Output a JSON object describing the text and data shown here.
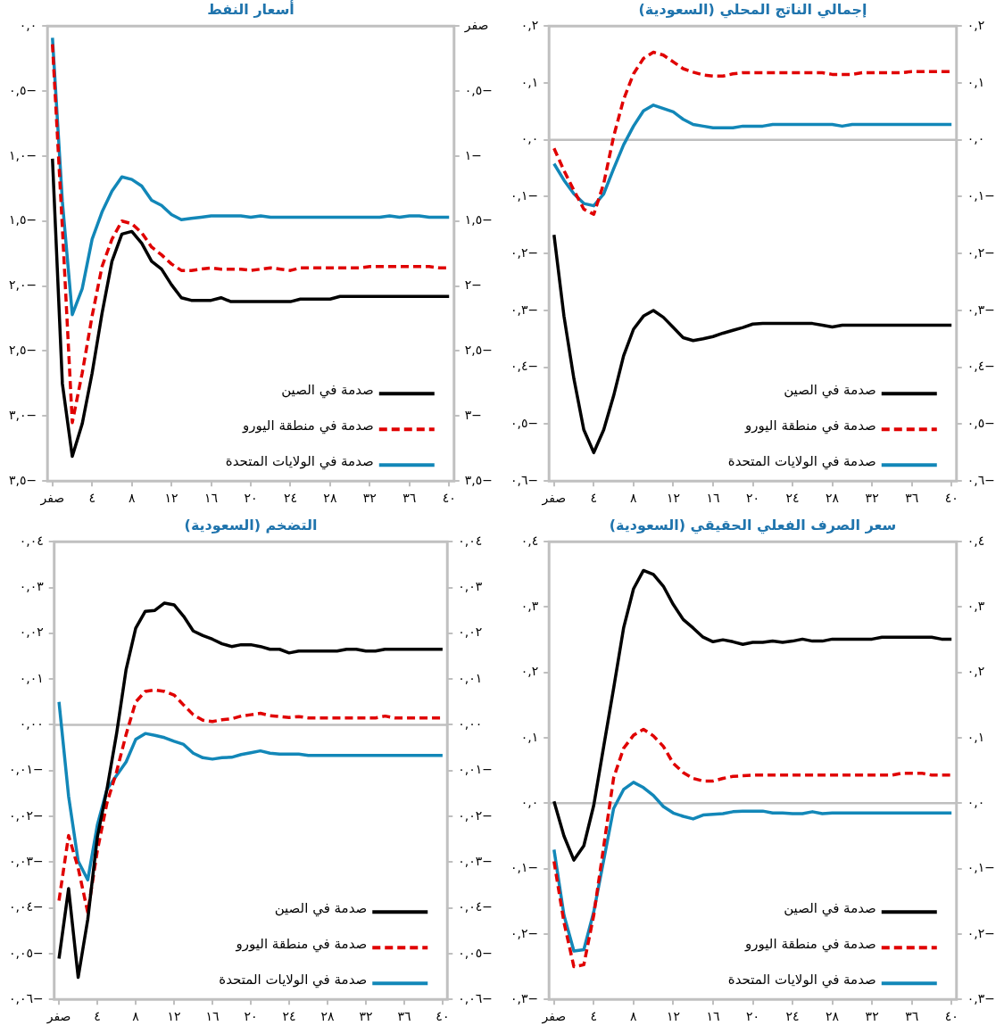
{
  "chart_data": [
    {
      "type": "line",
      "title": "أسعار النفط",
      "x": [
        0,
        1,
        2,
        3,
        4,
        5,
        6,
        7,
        8,
        9,
        10,
        11,
        12,
        13,
        14,
        15,
        16,
        17,
        18,
        19,
        20,
        21,
        22,
        23,
        24,
        25,
        26,
        27,
        28,
        29,
        30,
        31,
        32,
        33,
        34,
        35,
        36,
        37,
        38,
        39,
        40
      ],
      "xlim": [
        -0.5,
        40.5
      ],
      "xticks": [
        {
          "value": 0,
          "label": "صفر"
        },
        {
          "value": 4,
          "label": "٤"
        },
        {
          "value": 8,
          "label": "٨"
        },
        {
          "value": 12,
          "label": "١٢"
        },
        {
          "value": 16,
          "label": "١٦"
        },
        {
          "value": 20,
          "label": "٢٠"
        },
        {
          "value": 24,
          "label": "٢٤"
        },
        {
          "value": 28,
          "label": "٢٨"
        },
        {
          "value": 32,
          "label": "٣٢"
        },
        {
          "value": 36,
          "label": "٣٦"
        },
        {
          "value": 40,
          "label": "٤٠"
        }
      ],
      "ylim": [
        -3.5,
        0
      ],
      "yticks": [
        {
          "value": 0,
          "label": "٠,٠"
        },
        {
          "value": -0.5,
          "label": "٠,٥−"
        },
        {
          "value": -1,
          "label": "١,٠−"
        },
        {
          "value": -1.5,
          "label": "١,٥−"
        },
        {
          "value": -2,
          "label": "٢,٠−"
        },
        {
          "value": -2.5,
          "label": "٢,٥−"
        },
        {
          "value": -3,
          "label": "٣,٠−"
        },
        {
          "value": -3.5,
          "label": "٣,٥−"
        }
      ],
      "y2lim": [
        -3.5,
        0
      ],
      "y2ticks": [
        {
          "value": 0,
          "label": "صفر"
        },
        {
          "value": -0.5,
          "label": "٠,٥−"
        },
        {
          "value": -1,
          "label": "١−"
        },
        {
          "value": -1.5,
          "label": "١,٥−"
        },
        {
          "value": -2,
          "label": "٢−"
        },
        {
          "value": -2.5,
          "label": "٢,٥−"
        },
        {
          "value": -3,
          "label": "٣−"
        },
        {
          "value": -3.5,
          "label": "٣,٥−"
        }
      ],
      "legend": "bottom right",
      "series": [
        {
          "name": "صدمة في الصين",
          "color": "#000000",
          "line_style": "solid",
          "values": [
            -1.02,
            -2.75,
            -3.31,
            -3.06,
            -2.67,
            -2.21,
            -1.81,
            -1.6,
            -1.58,
            -1.67,
            -1.81,
            -1.87,
            -1.99,
            -2.09,
            -2.11,
            -2.11,
            -2.11,
            -2.09,
            -2.12,
            -2.12,
            -2.12,
            -2.12,
            -2.12,
            -2.12,
            -2.12,
            -2.1,
            -2.1,
            -2.1,
            -2.1,
            -2.08,
            -2.08,
            -2.08,
            -2.08,
            -2.08,
            -2.08,
            -2.08,
            -2.08,
            -2.08,
            -2.08,
            -2.08,
            -2.08
          ]
        },
        {
          "name": "صدمة في منطقة اليورو",
          "color": "#e00000",
          "line_style": "dashed",
          "values": [
            -0.14,
            -1.55,
            -3.05,
            -2.67,
            -2.23,
            -1.85,
            -1.64,
            -1.5,
            -1.52,
            -1.59,
            -1.7,
            -1.76,
            -1.83,
            -1.88,
            -1.88,
            -1.87,
            -1.86,
            -1.87,
            -1.87,
            -1.87,
            -1.88,
            -1.87,
            -1.86,
            -1.87,
            -1.88,
            -1.86,
            -1.86,
            -1.86,
            -1.86,
            -1.86,
            -1.86,
            -1.86,
            -1.85,
            -1.85,
            -1.85,
            -1.85,
            -1.85,
            -1.85,
            -1.85,
            -1.86,
            -1.86
          ]
        },
        {
          "name": "صدمة في الولايات المتحدة",
          "color": "#1287b8",
          "line_style": "solid",
          "values": [
            -0.09,
            -1.35,
            -2.22,
            -2.02,
            -1.64,
            -1.43,
            -1.27,
            -1.16,
            -1.18,
            -1.23,
            -1.34,
            -1.38,
            -1.45,
            -1.49,
            -1.48,
            -1.47,
            -1.46,
            -1.46,
            -1.46,
            -1.46,
            -1.47,
            -1.46,
            -1.47,
            -1.47,
            -1.47,
            -1.47,
            -1.47,
            -1.47,
            -1.47,
            -1.47,
            -1.47,
            -1.47,
            -1.47,
            -1.47,
            -1.46,
            -1.47,
            -1.46,
            -1.46,
            -1.47,
            -1.47,
            -1.47
          ]
        }
      ]
    },
    {
      "type": "line",
      "title": "إجمالي الناتج المحلي (السعودية)",
      "x": [
        0,
        1,
        2,
        3,
        4,
        5,
        6,
        7,
        8,
        9,
        10,
        11,
        12,
        13,
        14,
        15,
        16,
        17,
        18,
        19,
        20,
        21,
        22,
        23,
        24,
        25,
        26,
        27,
        28,
        29,
        30,
        31,
        32,
        33,
        34,
        35,
        36,
        37,
        38,
        39,
        40
      ],
      "xlim": [
        -0.5,
        40.5
      ],
      "xticks": [
        {
          "value": 0,
          "label": "صفر"
        },
        {
          "value": 4,
          "label": "٤"
        },
        {
          "value": 8,
          "label": "٨"
        },
        {
          "value": 12,
          "label": "١٢"
        },
        {
          "value": 16,
          "label": "١٦"
        },
        {
          "value": 20,
          "label": "٢٠"
        },
        {
          "value": 24,
          "label": "٢٤"
        },
        {
          "value": 28,
          "label": "٢٨"
        },
        {
          "value": 32,
          "label": "٣٢"
        },
        {
          "value": 36,
          "label": "٣٦"
        },
        {
          "value": 40,
          "label": "٤٠"
        }
      ],
      "ylim": [
        -0.6,
        0.2
      ],
      "yticks": [
        {
          "value": 0.2,
          "label": "٠,٢"
        },
        {
          "value": 0.1,
          "label": "٠,١"
        },
        {
          "value": 0,
          "label": "٠,٠"
        },
        {
          "value": -0.1,
          "label": "٠,١−"
        },
        {
          "value": -0.2,
          "label": "٠,٢−"
        },
        {
          "value": -0.3,
          "label": "٠,٣−"
        },
        {
          "value": -0.4,
          "label": "٠,٤−"
        },
        {
          "value": -0.5,
          "label": "٠,٥−"
        },
        {
          "value": -0.6,
          "label": "٠,٦−"
        }
      ],
      "y2lim": [
        -0.6,
        0.2
      ],
      "y2ticks": [
        {
          "value": 0.2,
          "label": "٠,٢"
        },
        {
          "value": 0.1,
          "label": "٠,١"
        },
        {
          "value": 0,
          "label": "٠,٠"
        },
        {
          "value": -0.1,
          "label": "٠,١−"
        },
        {
          "value": -0.2,
          "label": "٠,٢−"
        },
        {
          "value": -0.3,
          "label": "٠,٣−"
        },
        {
          "value": -0.4,
          "label": "٠,٤−"
        },
        {
          "value": -0.5,
          "label": "٠,٥−"
        },
        {
          "value": -0.6,
          "label": "٠,٦−"
        }
      ],
      "legend": "bottom right",
      "ref_lines": [
        {
          "axis": "y",
          "value": 0,
          "color": "#bfbfbf"
        }
      ],
      "series": [
        {
          "name": "صدمة في الصين",
          "color": "#000000",
          "line_style": "solid",
          "values": [
            -0.167,
            -0.31,
            -0.42,
            -0.51,
            -0.55,
            -0.51,
            -0.45,
            -0.38,
            -0.333,
            -0.31,
            -0.3,
            -0.312,
            -0.33,
            -0.348,
            -0.353,
            -0.35,
            -0.346,
            -0.34,
            -0.335,
            -0.33,
            -0.324,
            -0.323,
            -0.323,
            -0.323,
            -0.323,
            -0.323,
            -0.323,
            -0.326,
            -0.329,
            -0.326,
            -0.326,
            -0.326,
            -0.326,
            -0.326,
            -0.326,
            -0.326,
            -0.326,
            -0.326,
            -0.326,
            -0.326,
            -0.326
          ]
        },
        {
          "name": "صدمة في منطقة اليورو",
          "color": "#e00000",
          "line_style": "dashed",
          "values": [
            -0.015,
            -0.054,
            -0.089,
            -0.122,
            -0.131,
            -0.077,
            0.006,
            0.071,
            0.116,
            0.143,
            0.154,
            0.149,
            0.137,
            0.125,
            0.119,
            0.114,
            0.112,
            0.112,
            0.116,
            0.118,
            0.118,
            0.118,
            0.118,
            0.118,
            0.118,
            0.118,
            0.118,
            0.118,
            0.115,
            0.115,
            0.115,
            0.118,
            0.118,
            0.118,
            0.118,
            0.118,
            0.12,
            0.12,
            0.12,
            0.12,
            0.12
          ]
        },
        {
          "name": "صدمة في الولايات المتحدة",
          "color": "#1287b8",
          "line_style": "solid",
          "values": [
            -0.042,
            -0.071,
            -0.095,
            -0.112,
            -0.116,
            -0.095,
            -0.051,
            -0.009,
            0.024,
            0.051,
            0.061,
            0.055,
            0.049,
            0.036,
            0.027,
            0.024,
            0.021,
            0.021,
            0.021,
            0.024,
            0.024,
            0.024,
            0.027,
            0.027,
            0.027,
            0.027,
            0.027,
            0.027,
            0.027,
            0.024,
            0.027,
            0.027,
            0.027,
            0.027,
            0.027,
            0.027,
            0.027,
            0.027,
            0.027,
            0.027,
            0.027
          ]
        }
      ]
    },
    {
      "type": "line",
      "title": "التضخم (السعودية)",
      "x": [
        0,
        1,
        2,
        3,
        4,
        5,
        6,
        7,
        8,
        9,
        10,
        11,
        12,
        13,
        14,
        15,
        16,
        17,
        18,
        19,
        20,
        21,
        22,
        23,
        24,
        25,
        26,
        27,
        28,
        29,
        30,
        31,
        32,
        33,
        34,
        35,
        36,
        37,
        38,
        39,
        40
      ],
      "xlim": [
        -0.5,
        40.5
      ],
      "xticks": [
        {
          "value": 0,
          "label": "صفر"
        },
        {
          "value": 4,
          "label": "٤"
        },
        {
          "value": 8,
          "label": "٨"
        },
        {
          "value": 12,
          "label": "١٢"
        },
        {
          "value": 16,
          "label": "١٦"
        },
        {
          "value": 20,
          "label": "٢٠"
        },
        {
          "value": 24,
          "label": "٢٤"
        },
        {
          "value": 28,
          "label": "٢٨"
        },
        {
          "value": 32,
          "label": "٣٢"
        },
        {
          "value": 36,
          "label": "٣٦"
        },
        {
          "value": 40,
          "label": "٤٠"
        }
      ],
      "ylim": [
        -0.06,
        0.04
      ],
      "yticks": [
        {
          "value": 0.04,
          "label": "٠,٠٤"
        },
        {
          "value": 0.03,
          "label": "٠,٠٣"
        },
        {
          "value": 0.02,
          "label": "٠,٠٢"
        },
        {
          "value": 0.01,
          "label": "٠,٠١"
        },
        {
          "value": 0,
          "label": "٠,٠٠"
        },
        {
          "value": -0.01,
          "label": "٠,٠١−"
        },
        {
          "value": -0.02,
          "label": "٠,٠٢−"
        },
        {
          "value": -0.03,
          "label": "٠,٠٣−"
        },
        {
          "value": -0.04,
          "label": "٠,٠٤−"
        },
        {
          "value": -0.05,
          "label": "٠,٠٥−"
        },
        {
          "value": -0.06,
          "label": "٠,٠٦−"
        }
      ],
      "y2lim": [
        -0.06,
        0.04
      ],
      "y2ticks": [
        {
          "value": 0.04,
          "label": "٠,٠٤"
        },
        {
          "value": 0.03,
          "label": "٠,٠٣"
        },
        {
          "value": 0.02,
          "label": "٠,٠٢"
        },
        {
          "value": 0.01,
          "label": "٠,٠١"
        },
        {
          "value": 0,
          "label": "٠,٠٠"
        },
        {
          "value": -0.01,
          "label": "٠,٠١−"
        },
        {
          "value": -0.02,
          "label": "٠,٠٢−"
        },
        {
          "value": -0.03,
          "label": "٠,٠٣−"
        },
        {
          "value": -0.04,
          "label": "٠,٠٤−"
        },
        {
          "value": -0.05,
          "label": "٠,٠٥−"
        },
        {
          "value": -0.06,
          "label": "٠,٠٦−"
        }
      ],
      "legend": "bottom right",
      "ref_lines": [
        {
          "axis": "y",
          "value": 0,
          "color": "#bfbfbf"
        }
      ],
      "series": [
        {
          "name": "صدمة في الصين",
          "color": "#000000",
          "line_style": "solid",
          "values": [
            -0.0511,
            -0.0358,
            -0.0552,
            -0.0425,
            -0.0245,
            -0.0141,
            -0.002,
            0.0121,
            0.0211,
            0.0248,
            0.025,
            0.0266,
            0.0262,
            0.0237,
            0.0205,
            0.0195,
            0.0187,
            0.0177,
            0.0171,
            0.0175,
            0.0175,
            0.0171,
            0.0165,
            0.0165,
            0.0157,
            0.0161,
            0.0161,
            0.0161,
            0.0161,
            0.0161,
            0.0165,
            0.0165,
            0.0161,
            0.0161,
            0.0165,
            0.0165,
            0.0165,
            0.0165,
            0.0165,
            0.0165,
            0.0165
          ]
        },
        {
          "name": "صدمة في منطقة اليورو",
          "color": "#e00000",
          "line_style": "dashed",
          "values": [
            -0.0384,
            -0.0242,
            -0.0313,
            -0.041,
            -0.0275,
            -0.0171,
            -0.0103,
            -0.0021,
            0.005,
            0.0073,
            0.0076,
            0.0073,
            0.0065,
            0.0043,
            0.0022,
            0.001,
            0.0007,
            0.0011,
            0.0013,
            0.0019,
            0.0022,
            0.0025,
            0.002,
            0.0018,
            0.0016,
            0.0018,
            0.0015,
            0.0015,
            0.0015,
            0.0015,
            0.0015,
            0.0015,
            0.0015,
            0.0015,
            0.0019,
            0.0015,
            0.0015,
            0.0015,
            0.0015,
            0.0015,
            0.0015
          ]
        },
        {
          "name": "صدمة في الولايات المتحدة",
          "color": "#1287b8",
          "line_style": "solid",
          "values": [
            0.005,
            -0.0156,
            -0.0298,
            -0.0339,
            -0.0219,
            -0.0141,
            -0.0111,
            -0.0081,
            -0.0032,
            -0.0019,
            -0.0023,
            -0.0028,
            -0.0036,
            -0.0043,
            -0.0062,
            -0.0072,
            -0.0075,
            -0.0072,
            -0.0071,
            -0.0065,
            -0.0061,
            -0.0057,
            -0.0062,
            -0.0064,
            -0.0064,
            -0.0064,
            -0.0067,
            -0.0067,
            -0.0067,
            -0.0067,
            -0.0067,
            -0.0067,
            -0.0067,
            -0.0067,
            -0.0067,
            -0.0067,
            -0.0067,
            -0.0067,
            -0.0067,
            -0.0067,
            -0.0067
          ]
        }
      ]
    },
    {
      "type": "line",
      "title": "سعر الصرف الفعلي الحقيقي (السعودية)",
      "x": [
        0,
        1,
        2,
        3,
        4,
        5,
        6,
        7,
        8,
        9,
        10,
        11,
        12,
        13,
        14,
        15,
        16,
        17,
        18,
        19,
        20,
        21,
        22,
        23,
        24,
        25,
        26,
        27,
        28,
        29,
        30,
        31,
        32,
        33,
        34,
        35,
        36,
        37,
        38,
        39,
        40
      ],
      "xlim": [
        -0.5,
        40.5
      ],
      "xticks": [
        {
          "value": 0,
          "label": "صفر"
        },
        {
          "value": 4,
          "label": "٤"
        },
        {
          "value": 8,
          "label": "٨"
        },
        {
          "value": 12,
          "label": "١٢"
        },
        {
          "value": 16,
          "label": "١٦"
        },
        {
          "value": 20,
          "label": "٢٠"
        },
        {
          "value": 24,
          "label": "٢٤"
        },
        {
          "value": 28,
          "label": "٢٨"
        },
        {
          "value": 32,
          "label": "٣٢"
        },
        {
          "value": 36,
          "label": "٣٦"
        },
        {
          "value": 40,
          "label": "٤٠"
        }
      ],
      "ylim": [
        -0.3,
        0.4
      ],
      "yticks": [
        {
          "value": 0.4,
          "label": "٠,٤"
        },
        {
          "value": 0.3,
          "label": "٠,٣"
        },
        {
          "value": 0.2,
          "label": "٠,٢"
        },
        {
          "value": 0.1,
          "label": "٠,١"
        },
        {
          "value": 0,
          "label": "٠,٠"
        },
        {
          "value": -0.1,
          "label": "٠,١−"
        },
        {
          "value": -0.2,
          "label": "٠,٢−"
        },
        {
          "value": -0.3,
          "label": "٠,٣−"
        }
      ],
      "y2lim": [
        -0.3,
        0.4
      ],
      "y2ticks": [
        {
          "value": 0.4,
          "label": "٠,٤"
        },
        {
          "value": 0.3,
          "label": "٠,٣"
        },
        {
          "value": 0.2,
          "label": "٠,٢"
        },
        {
          "value": 0.1,
          "label": "٠,١"
        },
        {
          "value": 0,
          "label": "٠,٠"
        },
        {
          "value": -0.1,
          "label": "٠,١−"
        },
        {
          "value": -0.2,
          "label": "٠,٢−"
        },
        {
          "value": -0.3,
          "label": "٠,٣−"
        }
      ],
      "legend": "bottom right",
      "ref_lines": [
        {
          "axis": "y",
          "value": 0,
          "color": "#bfbfbf"
        }
      ],
      "series": [
        {
          "name": "صدمة في الصين",
          "color": "#000000",
          "line_style": "solid",
          "values": [
            0.003,
            -0.05,
            -0.087,
            -0.065,
            -0.003,
            0.087,
            0.176,
            0.268,
            0.328,
            0.356,
            0.35,
            0.332,
            0.304,
            0.281,
            0.268,
            0.254,
            0.247,
            0.25,
            0.247,
            0.243,
            0.246,
            0.246,
            0.248,
            0.246,
            0.248,
            0.251,
            0.248,
            0.248,
            0.251,
            0.251,
            0.251,
            0.251,
            0.251,
            0.254,
            0.254,
            0.254,
            0.254,
            0.254,
            0.254,
            0.251,
            0.251
          ]
        },
        {
          "name": "صدمة في منطقة اليورو",
          "color": "#e00000",
          "line_style": "dashed",
          "values": [
            -0.089,
            -0.182,
            -0.25,
            -0.247,
            -0.171,
            -0.066,
            0.039,
            0.084,
            0.104,
            0.113,
            0.103,
            0.087,
            0.061,
            0.047,
            0.038,
            0.034,
            0.034,
            0.038,
            0.041,
            0.042,
            0.043,
            0.043,
            0.043,
            0.043,
            0.043,
            0.043,
            0.043,
            0.043,
            0.043,
            0.043,
            0.043,
            0.043,
            0.043,
            0.043,
            0.043,
            0.046,
            0.046,
            0.046,
            0.043,
            0.043,
            0.043
          ]
        },
        {
          "name": "صدمة في الولايات المتحدة",
          "color": "#1287b8",
          "line_style": "solid",
          "values": [
            -0.071,
            -0.171,
            -0.226,
            -0.224,
            -0.166,
            -0.087,
            -0.008,
            0.021,
            0.032,
            0.024,
            0.012,
            -0.005,
            -0.015,
            -0.02,
            -0.024,
            -0.018,
            -0.017,
            -0.016,
            -0.013,
            -0.012,
            -0.012,
            -0.012,
            -0.015,
            -0.015,
            -0.016,
            -0.016,
            -0.013,
            -0.016,
            -0.015,
            -0.015,
            -0.015,
            -0.015,
            -0.015,
            -0.015,
            -0.015,
            -0.015,
            -0.015,
            -0.015,
            -0.015,
            -0.015,
            -0.015
          ]
        }
      ]
    }
  ]
}
